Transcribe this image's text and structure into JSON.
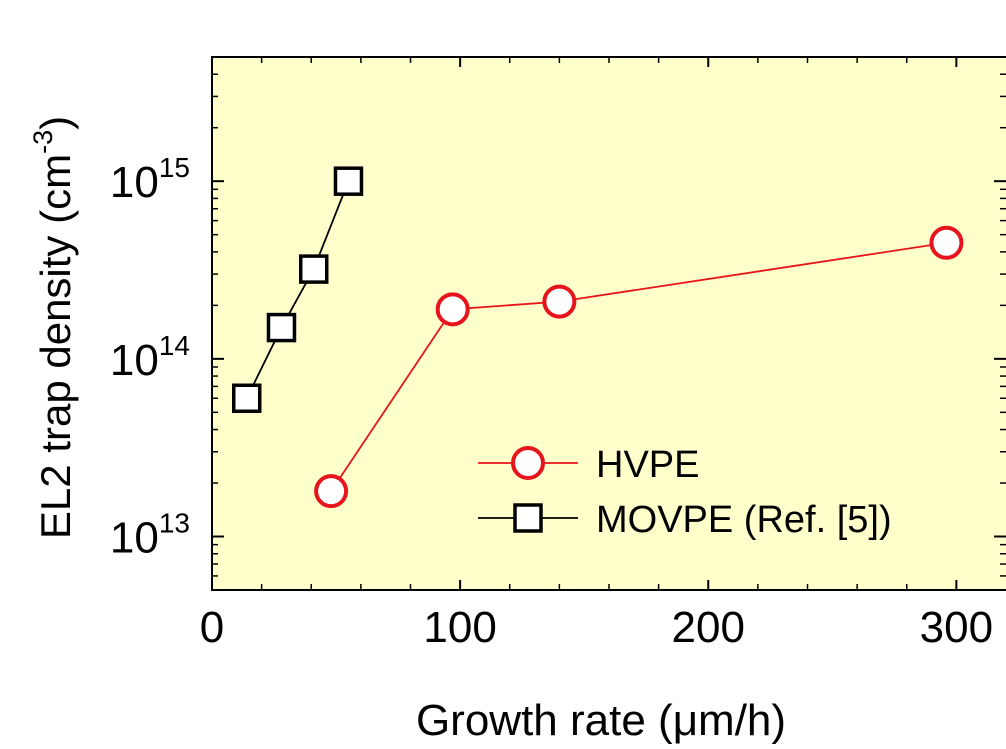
{
  "chart_data": {
    "type": "line",
    "xlabel": "Growth rate (μm/h)",
    "ylabel_main": "EL2 trap density (cm",
    "ylabel_sup": "-3",
    "ylabel_close": ")",
    "xscale": "linear",
    "yscale": "log",
    "xlim": [
      0,
      320
    ],
    "ylim": [
      5000000000000.0,
      5000000000000000.0
    ],
    "xticks": [
      {
        "value": 0,
        "label": "0"
      },
      {
        "value": 100,
        "label": "100"
      },
      {
        "value": 200,
        "label": "200"
      },
      {
        "value": 300,
        "label": "300"
      }
    ],
    "yticks": [
      {
        "value": 10000000000000.0,
        "base": "10",
        "exp": "13"
      },
      {
        "value": 100000000000000.0,
        "base": "10",
        "exp": "14"
      },
      {
        "value": 1000000000000000.0,
        "base": "10",
        "exp": "15"
      }
    ],
    "background_color": "#ffffcc",
    "legend_position": "lower-right",
    "series": [
      {
        "name": "HVPE",
        "marker": "circle",
        "color": "#e8141b",
        "x": [
          48,
          97,
          140,
          296
        ],
        "y": [
          18000000000000.0,
          190000000000000.0,
          210000000000000.0,
          450000000000000.0
        ]
      },
      {
        "name": "MOVPE (Ref. [5])",
        "marker": "square",
        "color": "#000000",
        "x": [
          14,
          28,
          41,
          55
        ],
        "y": [
          60000000000000.0,
          150000000000000.0,
          320000000000000.0,
          1000000000000000.0
        ]
      }
    ]
  }
}
